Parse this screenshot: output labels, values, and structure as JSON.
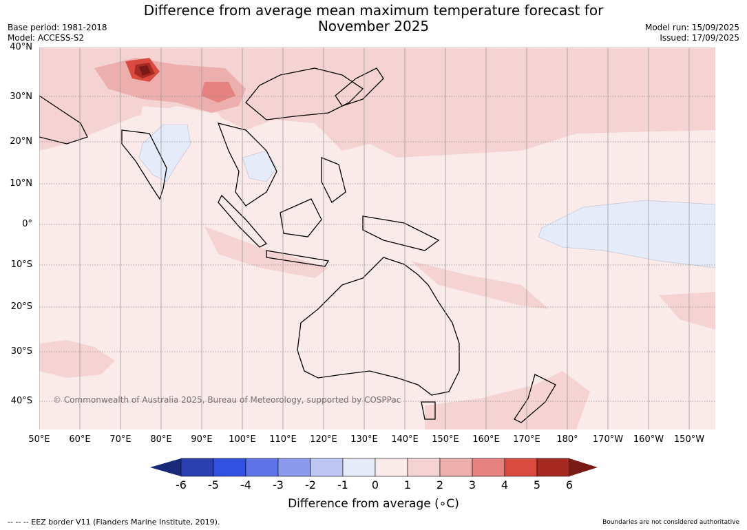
{
  "title_line1": "Difference from average mean maximum temperature forecast for",
  "title_line2": "November 2025",
  "base_period": "Base period: 1981-2018",
  "model": "Model: ACCESS-S2",
  "model_run": "Model run: 15/09/2025",
  "issued": "Issued: 17/09/2025",
  "latitude_labels": [
    "40°N",
    "30°N",
    "20°N",
    "10°N",
    "0°",
    "10°S",
    "20°S",
    "30°S",
    "40°S"
  ],
  "longitude_labels": [
    "50°E",
    "60°E",
    "70°E",
    "80°E",
    "90°E",
    "100°E",
    "110°E",
    "120°E",
    "130°E",
    "140°E",
    "150°E",
    "160°E",
    "170°E",
    "180°",
    "170°W",
    "160°W",
    "150°W"
  ],
  "copyright": "© Commonwealth of Australia 2025, Bureau of Meteorology, supported by COSPPac",
  "colorbar": {
    "ticks": [
      "-6",
      "-5",
      "-4",
      "-3",
      "-2",
      "-1",
      "0",
      "1",
      "2",
      "3",
      "4",
      "5",
      "6"
    ],
    "colors": [
      "#1a2a7a",
      "#2a3fb0",
      "#3351e0",
      "#5f74e6",
      "#8a99eb",
      "#bfc6f3",
      "#e6ebfa",
      "#fbeaea",
      "#f5d3d3",
      "#edaeae",
      "#e5827f",
      "#d94a3f",
      "#a62a22",
      "#7a1a16"
    ],
    "label": "Difference from average (∘C)"
  },
  "footer_left": "--  --  -- EEZ border V11 (Flanders Marine Institute, 2019).",
  "footer_right": "Boundaries are not considered authoritative"
}
